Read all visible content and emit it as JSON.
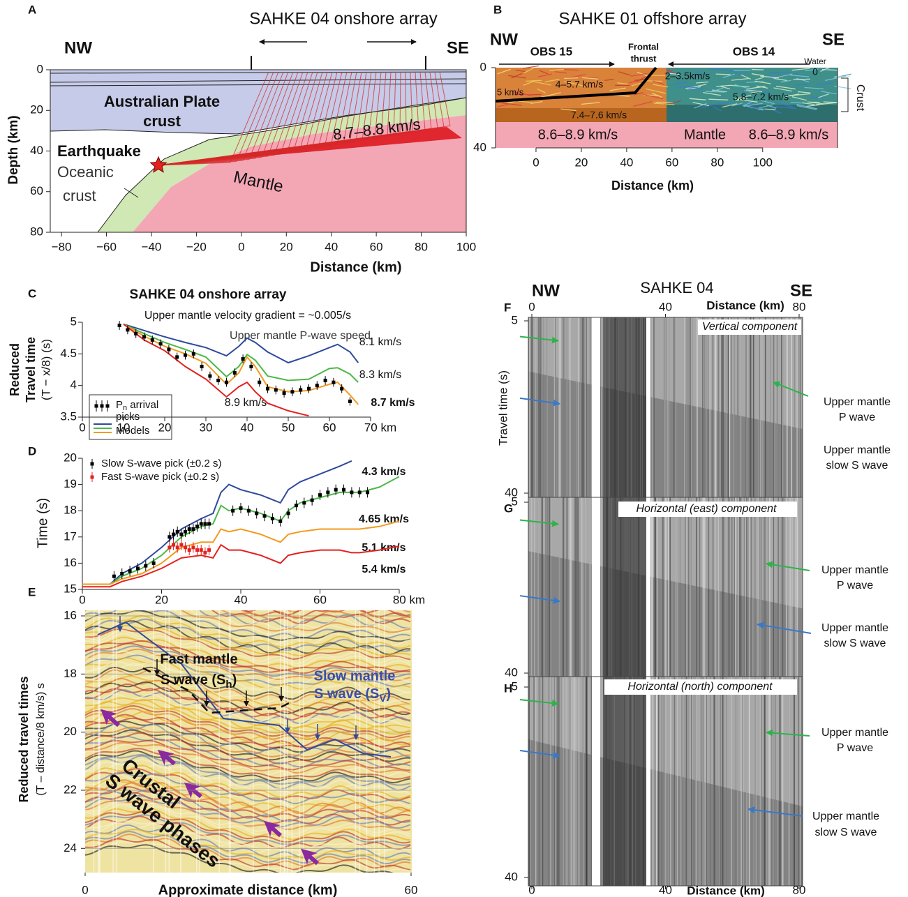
{
  "chart_data": [
    {
      "type": "section",
      "panel": "A",
      "title": "SAHKE 04 onshore array",
      "left_label": "NW",
      "right_label": "SE",
      "xlabel": "Distance (km)",
      "ylabel": "Depth (km)",
      "xlim": [
        -85,
        100
      ],
      "ylim": [
        0,
        80
      ],
      "xticks": [
        {
          "value": -80,
          "label": "−80"
        },
        {
          "value": -60,
          "label": "−60"
        },
        {
          "value": -40,
          "label": "−40"
        },
        {
          "value": -20,
          "label": "−20"
        },
        0,
        20,
        40,
        60,
        80,
        100
      ],
      "yticks": [
        0,
        20,
        40,
        60,
        80
      ],
      "annotations": [
        "Australian Plate",
        "crust",
        "Earthquake",
        "Oceanic",
        "crust",
        "Mantle",
        "8.7–8.8 km/s"
      ]
    },
    {
      "type": "section",
      "panel": "B",
      "title": "SAHKE 01 offshore array",
      "left_label": "NW",
      "right_label": "SE",
      "xlabel": "Distance (km)",
      "xlim": [
        -18,
        133
      ],
      "ylim": [
        0,
        40
      ],
      "xticks": [
        0,
        20,
        40,
        60,
        80,
        100
      ],
      "yticks": [
        0,
        40
      ],
      "annotations": [
        "OBS 15",
        "Frontal",
        "thrust",
        "OBS 14",
        "Water",
        "0",
        "5 km/s",
        "4–5.7 km/s",
        "2–3.5km/s",
        "5.8–7.2 km/s",
        "7.4–7.6 km/s",
        "8.6–8.9 km/s",
        "Mantle",
        "8.6–8.9 km/s",
        "Crust"
      ]
    },
    {
      "type": "line",
      "panel": "C",
      "title": "SAHKE 04 onshore array",
      "subtitle": "Upper mantle velocity gradient  = ~0.005/s",
      "annotation": "Upper mantle P-wave speed",
      "ylabel": [
        "Reduced",
        "Travel time",
        "(T − x/8) (s)"
      ],
      "xlim": [
        0,
        70
      ],
      "ylim": [
        3.5,
        5
      ],
      "xticks": [
        0,
        10,
        20,
        30,
        40,
        50,
        60,
        {
          "value": 70,
          "label": "70 km"
        }
      ],
      "yticks": [
        3.5,
        4,
        4.5,
        5
      ],
      "legend_picks": [
        "P",
        "n",
        " arrival",
        "picks"
      ],
      "legend_models": "Models",
      "series": [
        {
          "name": "8.1 km/s",
          "color": "#2e4a9e",
          "x": [
            10,
            15,
            20,
            25,
            30,
            35,
            38,
            40,
            42,
            45,
            50,
            55,
            60,
            62,
            65,
            67
          ],
          "values": [
            4.97,
            4.87,
            4.77,
            4.68,
            4.6,
            4.47,
            4.62,
            4.75,
            4.68,
            4.53,
            4.36,
            4.47,
            4.6,
            4.65,
            4.53,
            4.36
          ]
        },
        {
          "name": "8.3 km/s",
          "color": "#4cb848",
          "x": [
            10,
            15,
            20,
            25,
            30,
            35,
            38,
            40,
            42,
            45,
            50,
            55,
            60,
            62,
            65,
            67
          ],
          "values": [
            4.97,
            4.82,
            4.68,
            4.57,
            4.45,
            4.14,
            4.3,
            4.49,
            4.4,
            4.15,
            4.08,
            4.1,
            4.27,
            4.28,
            4.18,
            4.05
          ]
        },
        {
          "name": "8.7 km/s",
          "color": "#f39a1e",
          "x": [
            10,
            15,
            20,
            25,
            30,
            35,
            38,
            40,
            42,
            45,
            50,
            55,
            60,
            62,
            65,
            67
          ],
          "values": [
            4.97,
            4.78,
            4.62,
            4.5,
            4.35,
            4.02,
            4.2,
            4.45,
            4.3,
            3.98,
            3.9,
            3.92,
            4.02,
            4.05,
            3.85,
            3.7
          ]
        },
        {
          "name": "8.9 km/s",
          "color": "#e3221f",
          "x": [
            10,
            15,
            20,
            25,
            30,
            35,
            38,
            40,
            42,
            45,
            50,
            55,
            60,
            62,
            65,
            67
          ],
          "values": [
            4.97,
            4.72,
            4.55,
            4.3,
            4.1,
            3.82,
            3.98,
            4.05,
            3.9,
            3.72,
            3.6,
            3.52,
            null,
            null,
            null,
            null
          ]
        },
        {
          "color": "#000000",
          "error": 0.07,
          "x": [
            9,
            11,
            13,
            15,
            17,
            19,
            21,
            23,
            25,
            27,
            29,
            31,
            33,
            35,
            37,
            39,
            41,
            43,
            45,
            47,
            49,
            51,
            53,
            55,
            57,
            59,
            61,
            63,
            65
          ],
          "values": [
            4.95,
            4.88,
            4.82,
            4.77,
            4.72,
            4.66,
            4.57,
            4.45,
            4.48,
            4.5,
            4.3,
            4.15,
            4.08,
            4.05,
            4.2,
            4.42,
            4.3,
            4.05,
            3.95,
            3.93,
            3.88,
            3.9,
            3.93,
            3.95,
            4.0,
            4.08,
            4.05,
            3.95,
            3.75
          ]
        }
      ]
    },
    {
      "type": "line",
      "panel": "D",
      "ylabel": "Time (s)",
      "xlim": [
        0,
        80
      ],
      "ylim": [
        15,
        20
      ],
      "xticks": [
        0,
        20,
        40,
        60,
        {
          "value": 80,
          "label": "80 km"
        }
      ],
      "yticks": [
        15,
        16,
        17,
        18,
        19,
        20
      ],
      "series": [
        {
          "name": "4.3 km/s",
          "color": "#2e4a9e",
          "x": [
            0,
            7,
            10,
            15,
            20,
            25,
            30,
            33,
            35,
            37,
            40,
            45,
            50,
            52,
            55,
            60,
            65,
            68,
            70,
            75,
            80
          ],
          "values": [
            15.2,
            15.2,
            15.6,
            16.0,
            16.6,
            17.3,
            17.7,
            17.9,
            18.7,
            19.0,
            18.8,
            18.6,
            18.3,
            18.8,
            19.1,
            19.4,
            19.7,
            19.9,
            null,
            null,
            null
          ]
        },
        {
          "name": "4.65 km/s",
          "color": "#4cb848",
          "x": [
            0,
            7,
            10,
            15,
            20,
            25,
            30,
            33,
            35,
            37,
            40,
            45,
            50,
            52,
            55,
            60,
            65,
            68,
            70,
            75,
            80
          ],
          "values": [
            15.2,
            15.2,
            15.5,
            15.8,
            16.3,
            17.0,
            17.4,
            17.5,
            18.2,
            18.0,
            18.1,
            17.9,
            17.6,
            18.0,
            18.3,
            18.5,
            18.7,
            18.7,
            18.7,
            18.9,
            19.3
          ]
        },
        {
          "name": "5.1 km/s",
          "color": "#f39a1e",
          "x": [
            0,
            7,
            10,
            15,
            20,
            25,
            30,
            33,
            35,
            37,
            40,
            45,
            50,
            52,
            55,
            60,
            65,
            68,
            70,
            75,
            80
          ],
          "values": [
            15.2,
            15.2,
            15.4,
            15.6,
            16.0,
            16.6,
            16.8,
            16.8,
            17.3,
            17.2,
            17.3,
            17.1,
            16.8,
            17.1,
            17.2,
            17.3,
            17.3,
            17.3,
            17.3,
            17.4,
            17.6
          ]
        },
        {
          "name": "5.4 km/s",
          "color": "#e3221f",
          "x": [
            0,
            7,
            10,
            15,
            20,
            25,
            30,
            33,
            35,
            37,
            40,
            45,
            50,
            52,
            55,
            60,
            65,
            68,
            70,
            75,
            80
          ],
          "values": [
            15.1,
            15.1,
            15.3,
            15.5,
            15.8,
            16.2,
            16.3,
            16.2,
            16.7,
            16.5,
            16.5,
            16.3,
            16.0,
            16.3,
            16.4,
            16.5,
            16.5,
            16.4,
            16.4,
            16.5,
            16.65
          ]
        },
        {
          "name": "Slow S-wave pick (±0.2 s)",
          "color": "#000000",
          "error": 0.2,
          "x": [
            8,
            10,
            12,
            14,
            16,
            18,
            22,
            23,
            24,
            25,
            26,
            27,
            28,
            29,
            30,
            31,
            32,
            38,
            40,
            42,
            44,
            46,
            48,
            50,
            52,
            54,
            56,
            58,
            60,
            62,
            64,
            66,
            68,
            70,
            72
          ],
          "values": [
            15.5,
            15.6,
            15.7,
            15.8,
            15.9,
            16.0,
            17.0,
            17.1,
            17.2,
            17.1,
            17.2,
            17.3,
            17.3,
            17.4,
            17.5,
            17.5,
            17.5,
            18.0,
            18.1,
            18.0,
            17.9,
            17.8,
            17.7,
            17.6,
            17.9,
            18.2,
            18.3,
            18.4,
            18.6,
            18.7,
            18.8,
            18.8,
            18.7,
            18.7,
            18.7
          ]
        },
        {
          "name": "Fast S-wave pick (±0.2 s)",
          "color": "#e3221f",
          "error": 0.2,
          "x": [
            22,
            23,
            24,
            25,
            26,
            27,
            28,
            29,
            30,
            31,
            32
          ],
          "values": [
            16.6,
            16.7,
            16.6,
            16.7,
            16.6,
            16.5,
            16.6,
            16.5,
            16.5,
            16.4,
            16.5
          ]
        }
      ]
    },
    {
      "type": "seismic-color",
      "panel": "E",
      "xlabel": "Approximate distance (km)",
      "ylabel": [
        "Reduced travel times",
        "(T – distance/8 km/s) s"
      ],
      "xlim": [
        0,
        60
      ],
      "ylim": [
        16,
        24.8
      ],
      "xticks": [
        0,
        60
      ],
      "yticks": [
        16,
        18,
        20,
        22,
        24
      ],
      "annotations": [
        "Fast mantle",
        [
          "S wave (S",
          "h",
          ")"
        ],
        "Slow mantle",
        [
          "S wave (S",
          "V",
          ")"
        ],
        "Crustal",
        "S wave phases"
      ]
    },
    {
      "type": "seismic-gray",
      "panel": "F",
      "left_label": "NW",
      "title": "SAHKE 04",
      "right_label": "SE",
      "xlabel": "Distance (km)",
      "ylabel": "Travel time (s)",
      "xlim": [
        0,
        80
      ],
      "ylim": [
        5,
        40
      ],
      "xticks": [
        0,
        40,
        80
      ],
      "yticks": [
        5,
        40
      ],
      "component": "Vertical component",
      "annotations": [
        "Upper mantle",
        "P wave",
        "Upper mantle",
        "slow S wave"
      ]
    },
    {
      "type": "seismic-gray",
      "panel": "G",
      "xlim": [
        0,
        80
      ],
      "ylim": [
        5,
        40
      ],
      "yticks": [
        5,
        40
      ],
      "component": "Horizontal (east) component",
      "annotations": [
        "Upper mantle",
        "P wave",
        "Upper mantle",
        "slow S wave"
      ]
    },
    {
      "type": "seismic-gray",
      "panel": "H",
      "xlabel": "Distance (km)",
      "xlim": [
        0,
        80
      ],
      "ylim": [
        5,
        40
      ],
      "xticks": [
        0,
        40,
        80
      ],
      "yticks": [
        5,
        40
      ],
      "component": "Horizontal (north)  component",
      "annotations": [
        "Upper mantle",
        "P wave",
        "Upper mantle",
        "slow S wave"
      ]
    }
  ]
}
